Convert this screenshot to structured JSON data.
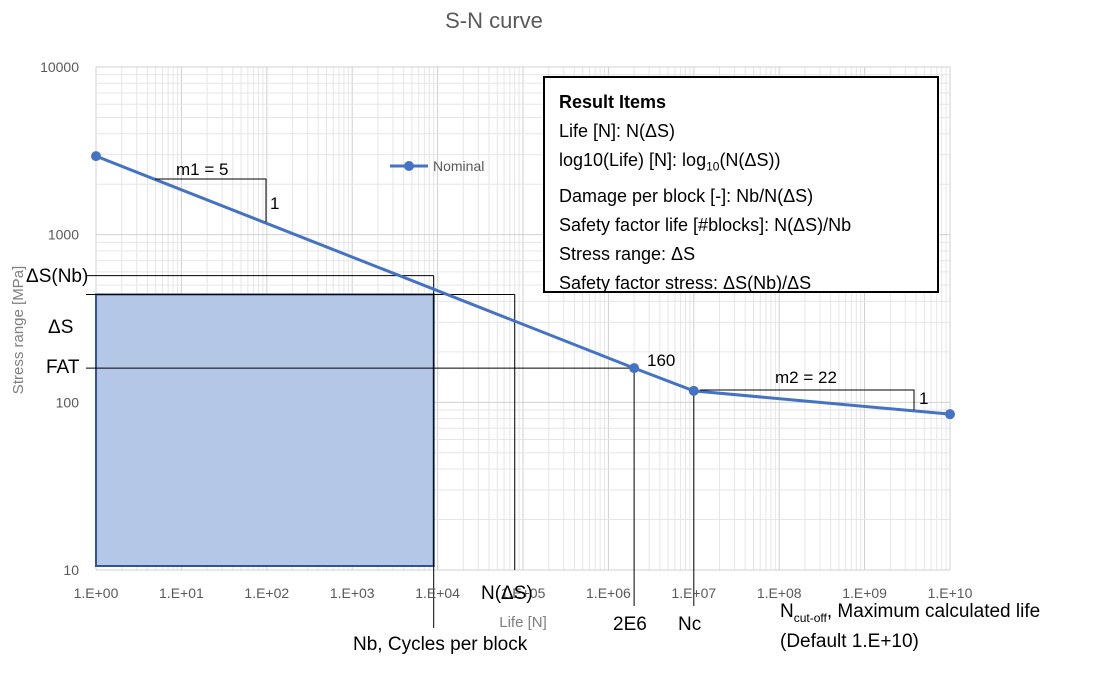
{
  "chart_data": {
    "type": "line",
    "title": "S-N curve",
    "xlabel": "Life [N]",
    "ylabel": "Stress range [MPa]",
    "x_scale": "log",
    "y_scale": "log",
    "xlim": [
      1,
      10000000000
    ],
    "ylim": [
      10,
      10000
    ],
    "x_ticks": [
      "1.E+00",
      "1.E+01",
      "1.E+02",
      "1.E+03",
      "1.E+04",
      "1.E+05",
      "1.E+06",
      "1.E+07",
      "1.E+08",
      "1.E+09",
      "1.E+10"
    ],
    "y_ticks": [
      "10",
      "100",
      "1000",
      "10000"
    ],
    "grid": true,
    "legend": "top-center",
    "series": [
      {
        "name": "Nominal",
        "color": "#4472C4",
        "points": [
          {
            "x": 1,
            "y": 2940
          },
          {
            "x": 2000000,
            "y": 160
          },
          {
            "x": 10000000,
            "y": 117
          },
          {
            "x": 10000000000,
            "y": 85
          }
        ]
      }
    ]
  },
  "annotations": {
    "m1": "m1 = 5",
    "m1_one": "1",
    "m2": "m2 = 22",
    "m2_one": "1",
    "fat_value": "160",
    "delta_s_nb": "ΔS(Nb)",
    "delta_s": "ΔS",
    "fat": "FAT",
    "n_delta_s": "N(ΔS)",
    "nb_label": "Nb, Cycles per block",
    "two_e6": "2E6",
    "nc": "Nc",
    "n_cutoff_main": "N",
    "n_cutoff_sub": "cut-off",
    "n_cutoff_rest": ", Maximum calculated life",
    "n_cutoff_default": "(Default 1.E+10)"
  },
  "block": {
    "nb": 9000,
    "delta_s": 440,
    "delta_s_nb": 570,
    "n_delta_s": 80000,
    "fat_stress": 160,
    "fill": "#B4C7E7",
    "stroke": "#2F5597"
  },
  "result_box": {
    "title": "Result Items",
    "lines": [
      "Life [N]: N(ΔS)",
      "log10(Life) [N]: log10(N(ΔS))",
      "Damage per block [-]: Nb/N(ΔS)",
      "Safety factor life [#blocks]: N(ΔS)/Nb",
      "Stress range: ΔS",
      "Safety factor stress: ΔS(Nb)/ΔS"
    ],
    "line2_prefix": "log10(Life) [N]: log",
    "line2_sub": "10",
    "line2_suffix": "(N(ΔS))"
  }
}
